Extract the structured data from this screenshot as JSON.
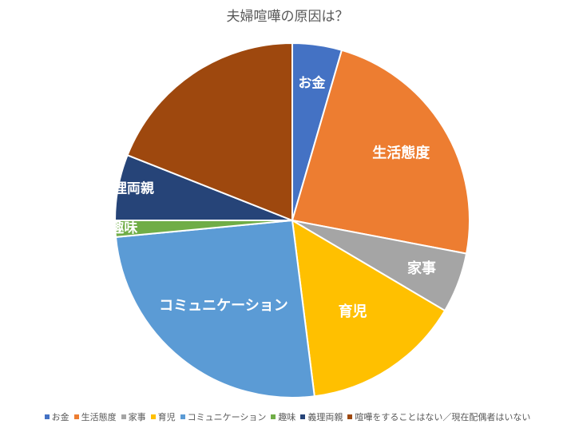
{
  "chart_data": {
    "type": "pie",
    "title": "夫婦喧嘩の原因は？",
    "legend_position": "bottom",
    "slices": [
      {
        "name": "お金",
        "value": 4.5,
        "color": "#4472C4",
        "label": "お金"
      },
      {
        "name": "生活態度",
        "value": 23.5,
        "color": "#ED7D31",
        "label": "生活態度"
      },
      {
        "name": "家事",
        "value": 5.5,
        "color": "#A5A5A5",
        "label": "家事"
      },
      {
        "name": "育児",
        "value": 14.5,
        "color": "#FFC000",
        "label": "育児"
      },
      {
        "name": "コミュニケーション",
        "value": 25.5,
        "color": "#5B9BD5",
        "label": "コミュニケーション"
      },
      {
        "name": "趣味",
        "value": 1.5,
        "color": "#70AD47",
        "label": "趣味"
      },
      {
        "name": "義理両親",
        "value": 6.0,
        "color": "#264478",
        "label": "義理両親"
      },
      {
        "name": "喧嘩をすることはない／現在配偶者はいない",
        "value": 19.0,
        "color": "#9E480E",
        "label": ""
      }
    ]
  }
}
